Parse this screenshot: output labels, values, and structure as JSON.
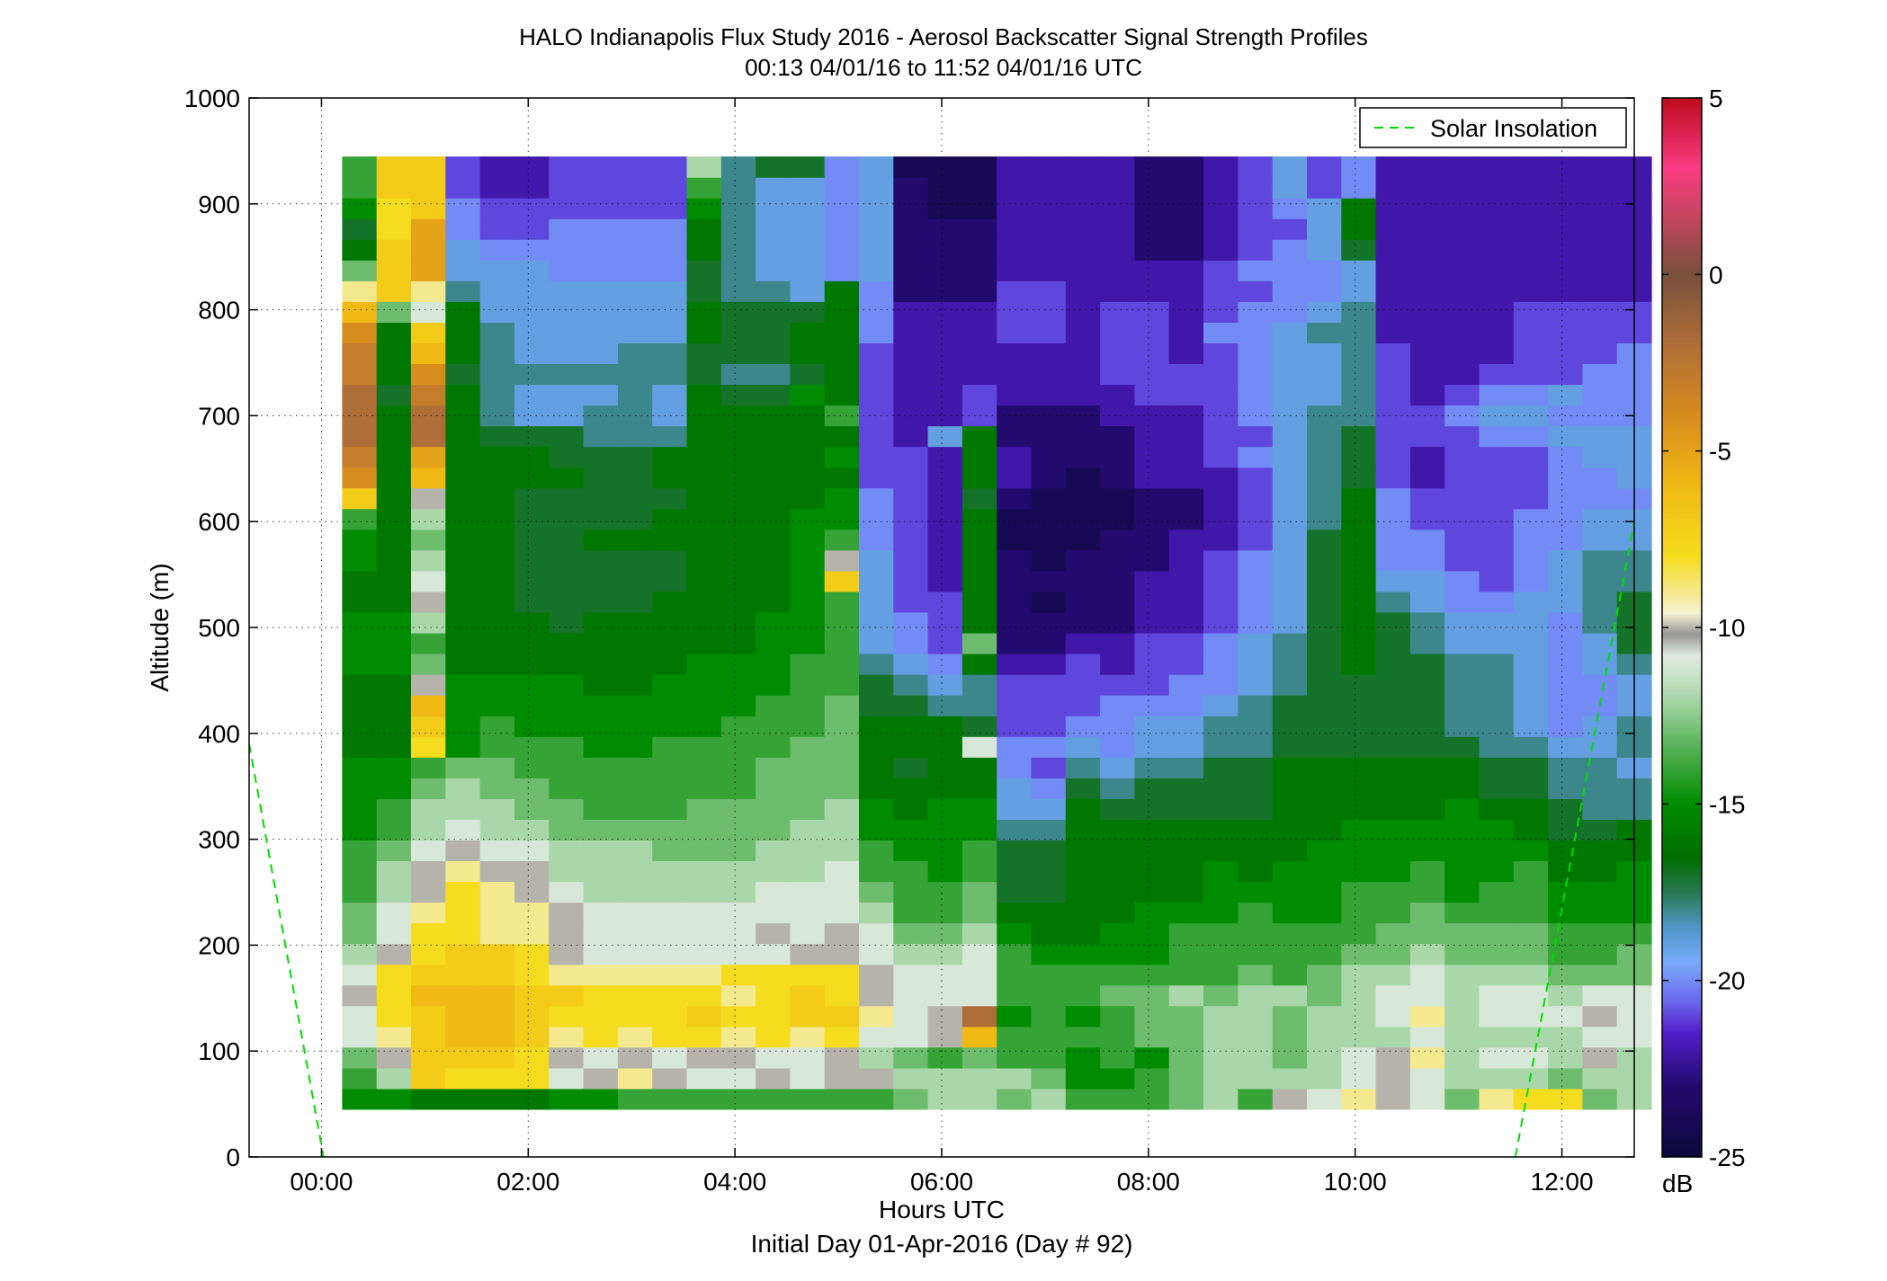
{
  "chart_data": {
    "type": "heatmap",
    "title": "HALO Indianapolis Flux Study 2016 - Aerosol Backscatter Signal Strength Profiles",
    "subtitle": "00:13 04/01/16 to 11:52 04/01/16  UTC",
    "xlabel": "Hours UTC",
    "xlabel2": "Initial Day 01-Apr-2016 (Day # 92)",
    "ylabel": "Altitude (m)",
    "xlim": [
      -0.7,
      12.7
    ],
    "ylim": [
      0,
      1000
    ],
    "x_ticks": [
      "00:00",
      "02:00",
      "04:00",
      "06:00",
      "08:00",
      "10:00",
      "12:00"
    ],
    "x_tick_values": [
      0,
      2,
      4,
      6,
      8,
      10,
      12
    ],
    "y_ticks": [
      "0",
      "100",
      "200",
      "300",
      "400",
      "500",
      "600",
      "700",
      "800",
      "900",
      "1000"
    ],
    "y_tick_values": [
      0,
      100,
      200,
      300,
      400,
      500,
      600,
      700,
      800,
      900,
      1000
    ],
    "grid": true,
    "colorbar": {
      "label": "dB",
      "range": [
        -25,
        5
      ],
      "ticks": [
        "5",
        "0",
        "-5",
        "-10",
        "-15",
        "-20",
        "-25"
      ],
      "tick_values": [
        5,
        0,
        -5,
        -10,
        -15,
        -20,
        -25
      ]
    },
    "legend": {
      "entries": [
        "Solar Insolation"
      ],
      "position": "top-right"
    },
    "solar_insolation": {
      "color": "#00dd00",
      "segments": [
        {
          "x": [
            -0.7,
            0.02
          ],
          "y": [
            390,
            0
          ]
        },
        {
          "x": [
            11.55,
            12.7
          ],
          "y": [
            0,
            600
          ]
        }
      ]
    },
    "grid_data": {
      "x_start": 0.2,
      "x_step": 0.3333,
      "y_start": 45,
      "y_step": 19.56,
      "no_data_color": "#ffffff",
      "missing_color": "#b4b4b4",
      "dB_matrix": [
        "-15 -15 -16 -16 -16 -16 -15 -15 -14 -14 -14 -14 -14 -14 -14 -14 -13 -12 -12 -13 -12 -14 -14 -14 -13 -12 -14 -10 -11 -9  -10 -11 -13 -9  -8  -8  -13 -12",
        "-14 -12 -7  -8  -8  -8  -11 -10 -9  -10 -11 -11 -10 -11 -10 -10 -12 -12 -12 -12 -13 -15 -15 -14 -13 -12 -12 -12 -12 -11 -10 -11 -12 -12 -12 -13 -12 -12",
        "-13 -10 -7  -7  -7  -8  -10 -11 -10 -11 -10 -10 -11 -11 -10 -12 -13 -14 -13 -14 -14 -15 -14 -15 -13 -12 -12 -13 -12 -11 -10 -9  -12 -11 -11 -12 -10 -12",
        "-11 -9  -7  -6  -6  -7  -9  -8  -9  -8  -8  -9  -8  -9  -8  -11 -11 -10 -6  -14 -14 -14 -14 -13 -13 -12 -12 -13 -12 -12 -12 -11 -12 -12 -12 -12 -11 -11",
        "-11 -8  -7  -6  -6  -7  -8  -8  -8  -8  -7  -8  -8  -7  -7  -9  -11 -10 -2  -15 -14 -15 -14 -13 -13 -12 -12 -13 -12 -12 -11 -9  -12 -11 -11 -11 -10 -11",
        "-10 -8  -6  -6  -6  -7  -7  -8  -8  -8  -8  -9  -8  -7  -8  -10 -11 -11 -11 -14 -14 -14 -13 -13 -12 -13 -12 -12 -13 -12 -11 -11 -12 -11 -11 -12 -11 -11",
        "-11 -8  -7  -7  -7  -8  -9  -9  -9  -9  -9  -8  -8  -8  -8  -10 -11 -11 -11 -14 -14 -14 -14 -14 -14 -14 -13 -14 -13 -12 -12 -11 -12 -12 -12 -13 -13 -13",
        "-12 -10 -8  -7  -7  -8  -10 -11 -11 -11 -11 -11 -11 -10 -10 -11 -12 -12 -11 -14 -15 -15 -15 -15 -14 -14 -14 -14 -14 -13 -13 -12 -13 -13 -13 -14 -14 -13",
        "-13 -11 -8  -8  -9  -9  -10 -11 -11 -11 -11 -11 -10 -11 -10 -11 -13 -13 -12 -15 -16 -16 -15 -15 -14 -14 -14 -14 -14 -14 -13 -13 -13 -13 -13 -14 -14 -14",
        "-13 -11 -9  -8  -9  -9  -10 -11 -11 -11 -11 -11 -11 -11 -11 -12 -14 -14 -13 -16 -16 -16 -16 -15 -15 -15 -14 -15 -15 -14 -14 -13 -14 -14 -14 -15 -15 -15",
        "-14 -12 -10 -8  -9  -10 -11 -12 -12 -12 -12 -12 -11 -11 -11 -13 -14 -14 -13 -17 -17 -16 -16 -16 -16 -15 -15 -15 -15 -14 -14 -14 -15 -14 -14 -15 -15 -15",
        "-14 -12 -10 -9  -10 -10 -12 -12 -12 -12 -12 -12 -12 -12 -11 -14 -14 -15 -14 -17 -17 -16 -16 -16 -16 -15 -16 -15 -15 -15 -15 -14 -15 -15 -14 -16 -16 -15",
        "-14 -13 -11 -10 -11 -11 -12 -12 -12 -13 -13 -13 -12 -12 -12 -14 -15 -15 -14 -17 -17 -16 -16 -16 -16 -16 -16 -16 -15 -15 -15 -15 -15 -15 -15 -16 -16 -16",
        "-15 -14 -12 -11 -12 -12 -13 -13 -13 -13 -13 -13 -13 -12 -12 -15 -15 -15 -15 -18 -18 -16 -16 -16 -16 -16 -16 -16 -16 -15 -15 -15 -15 -15 -16 -17 -17 -16",
        "-15 -14 -12 -12 -12 -13 -13 -14 -14 -14 -13 -13 -13 -13 -12 -15 -16 -15 -15 -19 -19 -16 -17 -17 -17 -17 -17 -16 -16 -16 -16 -16 -15 -16 -16 -17 -18 -18",
        "-15 -15 -13 -12 -13 -13 -14 -14 -14 -14 -14 -14 -13 -13 -13 -16 -16 -16 -16 -19 -20 -17 -18 -17 -17 -17 -17 -16 -16 -16 -16 -16 -16 -17 -17 -18 -18 -18",
        "-15 -15 -14 -13 -13 -14 -14 -14 -14 -14 -14 -14 -13 -13 -13 -16 -17 -16 -16 -20 -21 -18 -19 -18 -18 -17 -17 -16 -16 -16 -16 -16 -16 -17 -17 -18 -18 -19",
        "-16 -16 -8  -15 -14 -14 -14 -15 -15 -14 -14 -14 -14 -13 -13 -16 -16 -16 -11 -20 -20 -19 -20 -19 -19 -18 -18 -17 -17 -17 -17 -17 -17 -18 -18 -19 -19 -18",
        "-16 -16 -7  -15 -14 -15 -15 -15 -15 -15 -15 -14 -14 -14 -13 -16 -16 -16 -17 -21 -21 -20 -20 -19 -19 -18 -18 -17 -17 -17 -17 -17 -18 -18 -19 -20 -19 -18",
        "-16 -16 -6  -15 -15 -15 -15 -15 -15 -15 -15 -15 -14 -14 -13 -17 -17 -18 -18 -21 -21 -21 -20 -20 -20 -19 -18 -17 -17 -17 -17 -17 -18 -18 -19 -20 -20 -19",
        "-16 -16 -10 -15 -15 -15 -15 -16 -16 -15 -15 -15 -15 -14 -14 -17 -18 -19 -18 -21 -21 -21 -21 -21 -20 -20 -19 -18 -17 -17 -17 -17 -18 -18 -19 -20 -20 -19",
        "-15 -15 -13 -16 -16 -16 -16 -16 -16 -16 -15 -15 -15 -14 -14 -18 -19 -20 -16 -22 -22 -21 -22 -21 -21 -20 -19 -18 -17 -16 -17 -17 -18 -18 -19 -20 -19 -18",
        "-15 -15 -14 -16 -16 -16 -16 -16 -16 -16 -16 -16 -15 -15 -14 -19 -20 -21 -13 -23 -23 -22 -22 -21 -21 -20 -19 -18 -17 -16 -17 -18 -19 -19 -19 -20 -19 -17",
        "-15 -15 -12 -16 -16 -16 -17 -16 -16 -16 -16 -16 -15 -15 -14 -19 -20 -21 -16 -23 -23 -23 -23 -22 -22 -21 -20 -19 -17 -16 -17 -18 -19 -19 -19 -20 -18 -17",
        "-16 -16 -10 -16 -16 -17 -17 -17 -17 -16 -16 -16 -16 -15 -14 -19 -21 -21 -16 -23 -24 -23 -23 -22 -22 -21 -20 -19 -17 -16 -18 -19 -20 -20 -19 -19 -18 -17",
        "-16 -16 -11 -16 -16 -17 -17 -17 -17 -17 -16 -16 -16 -15 -7  -19 -21 -22 -16 -23 -23 -23 -23 -22 -22 -21 -20 -19 -17 -16 -19 -19 -20 -21 -20 -19 -18 -18",
        "-15 -16 -12 -16 -16 -17 -17 -17 -17 -17 -16 -16 -16 -15 -10 -19 -21 -22 -16 -23 -24 -23 -23 -23 -22 -21 -20 -19 -17 -16 -20 -20 -21 -21 -20 -19 -18 -18",
        "-15 -16 -13 -16 -16 -17 -17 -16 -16 -16 -16 -16 -16 -15 -14 -20 -21 -22 -16 -24 -24 -24 -23 -23 -22 -22 -21 -19 -17 -16 -20 -20 -21 -21 -20 -20 -19 -19",
        "-14 -16 -12 -16 -16 -17 -17 -17 -17 -16 -16 -16 -16 -15 -15 -20 -21 -22 -16 -24 -24 -24 -24 -23 -23 -22 -21 -19 -18 -16 -20 -21 -21 -21 -20 -20 -19 -19",
        "-7  -16 -10 -16 -16 -17 -17 -17 -17 -17 -16 -16 -16 -16 -15 -20 -21 -22 -17 -23 -24 -24 -24 -23 -23 -22 -21 -19 -18 -16 -20 -21 -21 -21 -21 -20 -20 -20",
        "-4  -16 -6  -16 -16 -16 -16 -17 -17 -16 -16 -16 -16 -16 -16 -21 -21 -22 -16 -22 -23 -24 -23 -22 -22 -22 -21 -19 -18 -17 -21 -22 -21 -21 -21 -20 -20 -19",
        "-3  -16 -5  -16 -16 -16 -17 -17 -17 -16 -16 -16 -16 -16 -15 -21 -21 -22 -16 -22 -23 -23 -23 -22 -22 -21 -20 -19 -18 -17 -21 -22 -21 -21 -21 -20 -19 -19",
        "-2  -16 -2  -16 -17 -17 -17 -18 -18 -18 -16 -16 -16 -16 -16 -21 -22 -19 -16 -23 -23 -23 -23 -22 -22 -21 -21 -19 -18 -17 -21 -21 -21 -20 -20 -19 -19 -19",
        "-2  -16 -2  -16 -18 -19 -19 -18 -18 -19 -16 -16 -16 -16 -14 -21 -22 -22 -21 -23 -23 -23 -22 -22 -22 -21 -20 -19 -18 -18 -21 -21 -20 -19 -19 -20 -20 -20",
        "-2  -17 -3  -16 -18 -19 -19 -19 -18 -19 -16 -17 -17 -15 -16 -21 -22 -22 -21 -22 -22 -22 -22 -21 -21 -21 -20 -19 -19 -18 -21 -22 -21 -20 -20 -19 -20 -20",
        "-3  -16 -4  -17 -18 -18 -18 -18 -18 -18 -17 -18 -18 -17 -16 -21 -22 -22 -22 -22 -22 -22 -21 -21 -21 -21 -20 -19 -19 -18 -21 -22 -22 -21 -21 -21 -20 -20",
        "-3  -16 -6  -16 -18 -19 -19 -19 -18 -18 -17 -17 -17 -16 -16 -21 -22 -22 -22 -22 -22 -22 -21 -21 -22 -21 -20 -19 -19 -18 -21 -22 -22 -22 -21 -21 -21 -20",
        "-4  -16 -7  -16 -18 -19 -19 -19 -19 -19 -16 -17 -17 -16 -16 -20 -22 -22 -22 -21 -21 -22 -21 -21 -22 -20 -20 -19 -18 -18 -22 -22 -22 -22 -21 -21 -21 -21",
        "-6  -13 -11 -16 -19 -19 -19 -19 -19 -19 -16 -17 -17 -17 -16 -20 -22 -22 -22 -21 -21 -22 -21 -21 -22 -21 -20 -20 -19 -18 -22 -22 -22 -22 -21 -21 -21 -21",
        "-9  -7  -9  -18 -19 -19 -19 -19 -19 -19 -17 -18 -18 -19 -16 -20 -23 -23 -23 -21 -21 -22 -22 -22 -22 -21 -21 -20 -20 -19 -22 -22 -22 -22 -22 -22 -22 -22",
        "-13 -7  -5  -19 -19 -19 -20 -20 -20 -20 -17 -18 -19 -19 -20 -19 -23 -23 -23 -22 -22 -22 -22 -22 -22 -21 -20 -20 -20 -19 -22 -22 -22 -22 -22 -22 -22 -22",
        "-16 -7  -5  -19 -20 -20 -20 -20 -20 -20 -16 -18 -19 -19 -20 -19 -23 -23 -23 -22 -22 -22 -22 -23 -23 -22 -21 -20 -19 -17 -22 -22 -22 -22 -22 -22 -22 -22",
        "-17 -8  -5  -20 -21 -21 -20 -20 -20 -20 -16 -18 -19 -19 -20 -19 -23 -23 -23 -22 -22 -22 -22 -23 -23 -22 -21 -21 -19 -16 -22 -22 -22 -22 -22 -22 -22 -22",
        "-15 -8  -7  -20 -21 -21 -21 -21 -21 -21 -15 -18 -19 -19 -20 -19 -23 -24 -24 -22 -22 -22 -22 -23 -23 -22 -21 -20 -19 -16 -22 -22 -22 -22 -22 -22 -22 -22",
        "-14 -7  -7  -21 -22 -22 -21 -21 -21 -21 -14 -18 -19 -19 -20 -19 -23 -24 -24 -22 -22 -22 -22 -23 -23 -22 -21 -19 -21 -20 -22 -22 -22 -22 -22 -22 -22 -22",
        "-14 -7  -7  -21 -22 -22 -21 -21 -21 -21 -12 -18 -17 -17 -20 -19 -24 -24 -24 -22 -22 -22 -22 -23 -23 -22 -21 -19 -21 -20 -22 -22 -22 -22 -22 -22 -22 -22"
      ]
    }
  }
}
